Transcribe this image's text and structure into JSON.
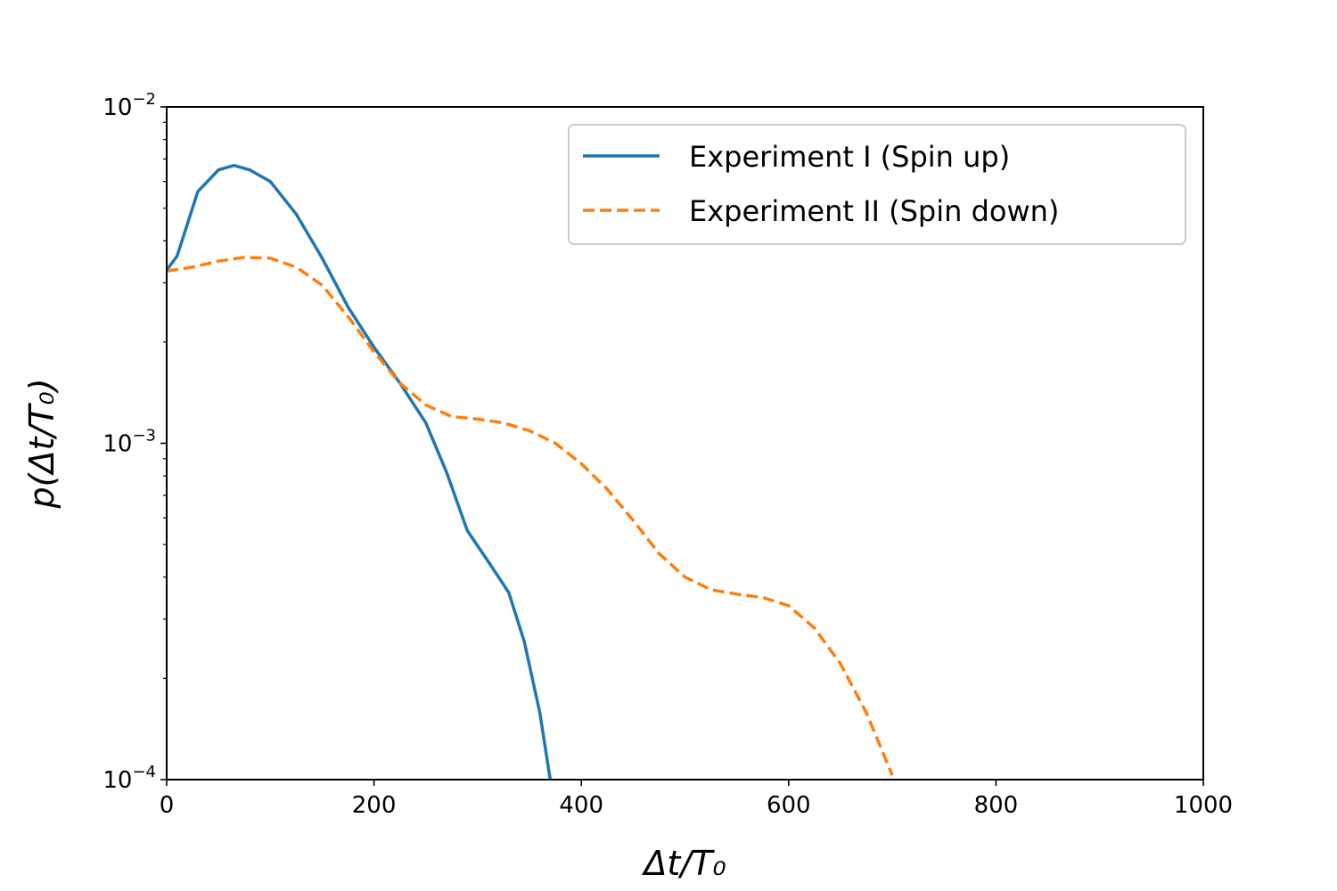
{
  "chart_data": {
    "type": "line",
    "xlabel": "Δt/T₀",
    "ylabel": "p(Δt/T₀)",
    "xlim": [
      0,
      1000
    ],
    "xticks": [
      0,
      200,
      400,
      600,
      800,
      1000
    ],
    "ylim": [
      0.0001,
      0.01
    ],
    "yscale": "log",
    "yticks": [
      {
        "value": 0.0001,
        "label": "10",
        "superscript": "−4"
      },
      {
        "value": 0.001,
        "label": "10",
        "superscript": "−3"
      },
      {
        "value": 0.01,
        "label": "10",
        "superscript": "−2"
      }
    ],
    "yminorticks": [
      0.0002,
      0.0003,
      0.0004,
      0.0005,
      0.0006,
      0.0007,
      0.0008,
      0.0009,
      0.002,
      0.003,
      0.004,
      0.005,
      0.006,
      0.007,
      0.008,
      0.009
    ],
    "legend": "upper right",
    "series": [
      {
        "name": "Experiment I (Spin up)",
        "color": "#1f77b4",
        "linestyle": "solid",
        "x": [
          0,
          10,
          30,
          50,
          65,
          80,
          100,
          125,
          150,
          175,
          200,
          225,
          250,
          270,
          290,
          310,
          330,
          345,
          360,
          370
        ],
        "values": [
          0.00327,
          0.0036,
          0.0056,
          0.0065,
          0.0067,
          0.0065,
          0.006,
          0.0048,
          0.00355,
          0.00254,
          0.00193,
          0.00151,
          0.00115,
          0.00082,
          0.00055,
          0.000446,
          0.00036,
          0.000257,
          0.000158,
          0.0001
        ]
      },
      {
        "name": "Experiment II (Spin down)",
        "color": "#ff7f0e",
        "linestyle": "dashed",
        "x": [
          0,
          25,
          50,
          75,
          100,
          125,
          150,
          175,
          200,
          225,
          250,
          275,
          300,
          325,
          350,
          375,
          400,
          425,
          450,
          475,
          500,
          525,
          550,
          575,
          600,
          625,
          650,
          675,
          700
        ],
        "values": [
          0.00325,
          0.00334,
          0.00348,
          0.00357,
          0.00355,
          0.00334,
          0.00295,
          0.00238,
          0.00187,
          0.00151,
          0.0013,
          0.0012,
          0.00118,
          0.00115,
          0.00109,
          0.001,
          0.00087,
          0.00073,
          0.00059,
          0.00047,
          0.0004,
          0.000367,
          0.000356,
          0.000348,
          0.000329,
          0.000282,
          0.000221,
          0.000158,
          0.000103
        ]
      }
    ]
  }
}
